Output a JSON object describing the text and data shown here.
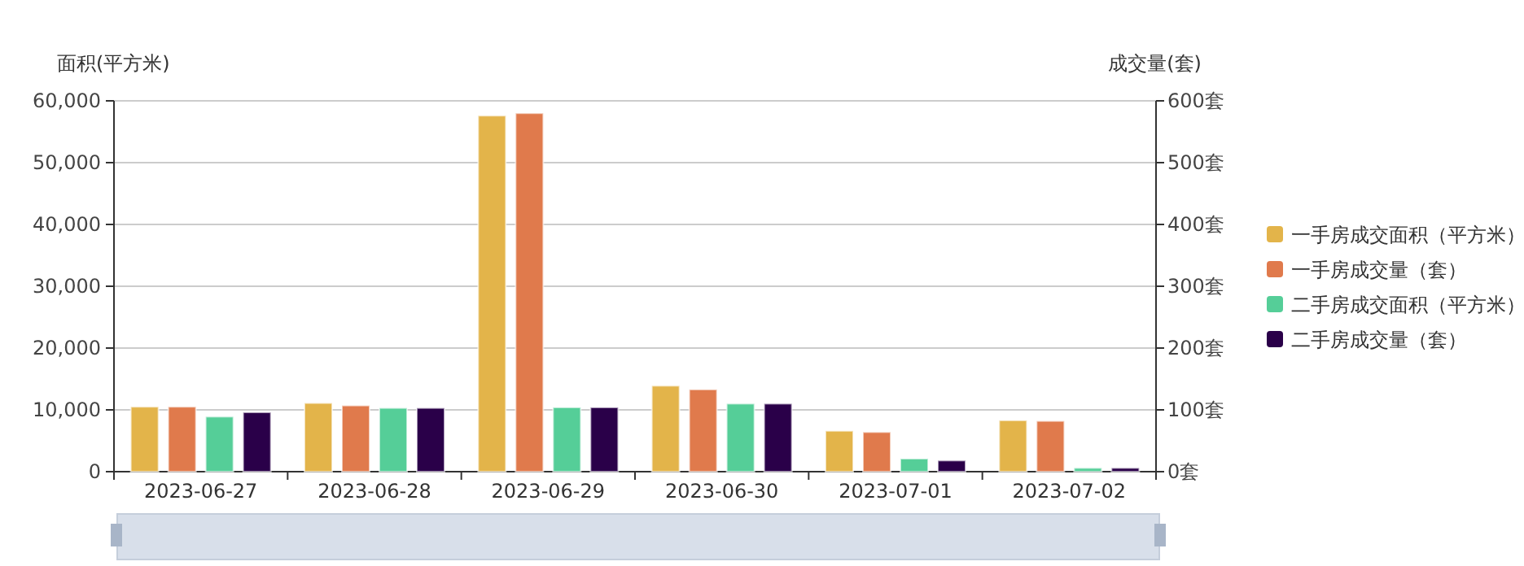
{
  "chart_data": {
    "type": "bar",
    "ylabel": "面积(平方米)",
    "y2label": "成交量(套)",
    "categories": [
      "2023-06-27",
      "2023-06-28",
      "2023-06-29",
      "2023-06-30",
      "2023-07-01",
      "2023-07-02"
    ],
    "series": [
      {
        "name": "一手房成交面积（平方米）",
        "color": "#e3b44a",
        "values": [
          10500,
          11100,
          57600,
          13900,
          6600,
          8300
        ]
      },
      {
        "name": "一手房成交量（套）",
        "color": "#e07a4c",
        "axis": "y2",
        "values": [
          105,
          107,
          580,
          133,
          64,
          82
        ]
      },
      {
        "name": "二手房成交面积（平方米）",
        "color": "#55ce98",
        "values": [
          8900,
          10300,
          10400,
          11000,
          2100,
          600
        ]
      },
      {
        "name": "二手房成交量（套）",
        "color": "#2a0049",
        "axis": "y2",
        "values": [
          96,
          103,
          104,
          110,
          18,
          6
        ]
      }
    ],
    "ylim": [
      0,
      60000
    ],
    "yticks": [
      {
        "value": 0,
        "label": "0"
      },
      {
        "value": 10000,
        "label": "10,000"
      },
      {
        "value": 20000,
        "label": "20,000"
      },
      {
        "value": 30000,
        "label": "30,000"
      },
      {
        "value": 40000,
        "label": "40,000"
      },
      {
        "value": 50000,
        "label": "50,000"
      },
      {
        "value": 60000,
        "label": "60,000"
      }
    ],
    "y2lim": [
      0,
      600
    ],
    "y2ticks": [
      {
        "value": 0,
        "label": "0套"
      },
      {
        "value": 100,
        "label": "100套"
      },
      {
        "value": 200,
        "label": "200套"
      },
      {
        "value": 300,
        "label": "300套"
      },
      {
        "value": 400,
        "label": "400套"
      },
      {
        "value": 500,
        "label": "500套"
      },
      {
        "value": 600,
        "label": "600套"
      }
    ],
    "grid": "y",
    "legend": "right"
  }
}
